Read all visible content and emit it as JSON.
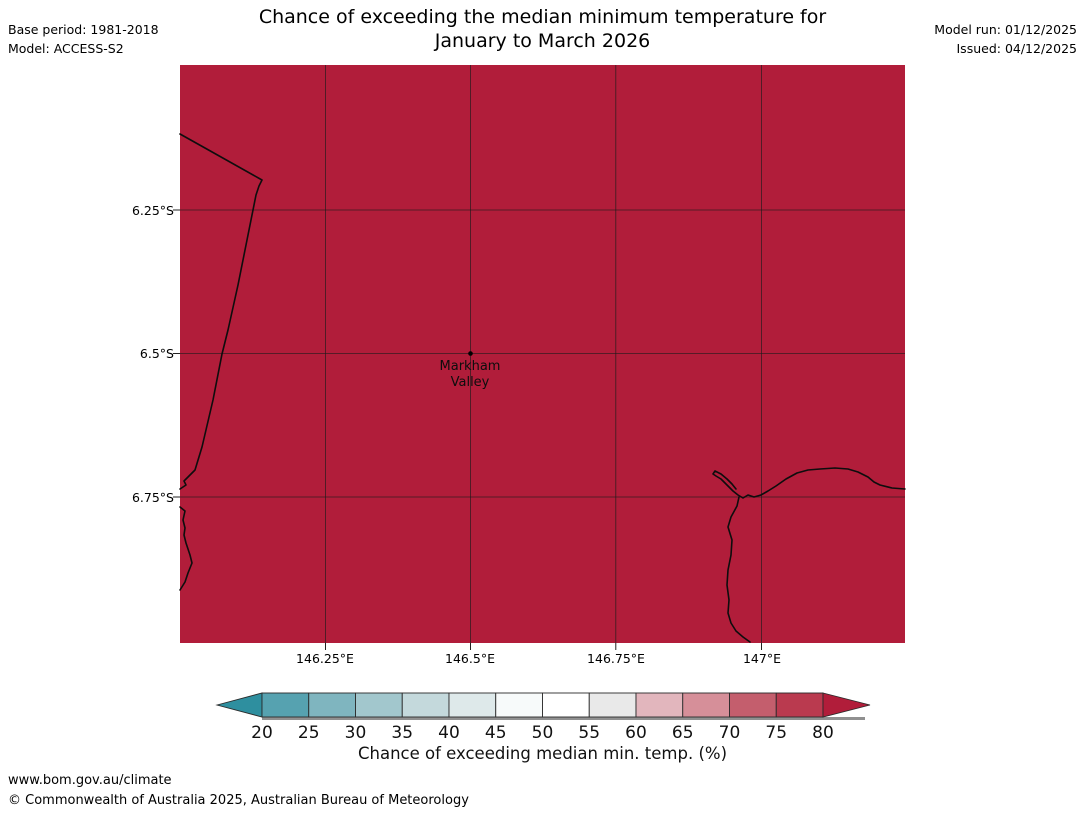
{
  "header": {
    "title_line1": "Chance of exceeding the median minimum temperature for",
    "title_line2": "January to March 2026",
    "base_period": "Base period: 1981-2018",
    "model": "Model: ACCESS-S2",
    "model_run": "Model run: 01/12/2025",
    "issued": "Issued: 04/12/2025"
  },
  "map": {
    "fill_color": "#b11d3a",
    "x_ticks": [
      "146.25°E",
      "146.5°E",
      "146.75°E",
      "147°E"
    ],
    "y_ticks": [
      "6.25°S",
      "6.5°S",
      "6.75°S"
    ],
    "marker_label_line1": "Markham",
    "marker_label_line2": "Valley"
  },
  "colorbar": {
    "label": "Chance of exceeding median min. temp. (%)",
    "ticks": [
      "20",
      "25",
      "30",
      "35",
      "40",
      "45",
      "50",
      "55",
      "60",
      "65",
      "70",
      "75",
      "80"
    ],
    "arrow_left_color": "#2e8f9f",
    "segment_colors": [
      "#56a2b0",
      "#7fb5bf",
      "#a2c7cd",
      "#c4d9dc",
      "#dee9ea",
      "#f7fafa",
      "#ffffff",
      "#e9e9e9",
      "#e2b6bd",
      "#d68f99",
      "#c45e6d",
      "#ba3a4f"
    ],
    "arrow_right_color": "#b11d3a"
  },
  "footer": {
    "url": "www.bom.gov.au/climate",
    "copyright": "© Commonwealth of Australia 2025, Australian Bureau of Meteorology"
  },
  "chart_data": {
    "type": "heatmap",
    "title": "Chance of exceeding the median minimum temperature for January to March 2026",
    "model": "ACCESS-S2",
    "base_period": "1981-2018",
    "model_run": "01/12/2025",
    "issued": "04/12/2025",
    "x_axis": {
      "ticks": [
        "146.25°E",
        "146.5°E",
        "146.75°E",
        "147°E"
      ],
      "range": [
        "146°E",
        "147.25°E"
      ]
    },
    "y_axis": {
      "ticks": [
        "6.25°S",
        "6.5°S",
        "6.75°S"
      ],
      "range": [
        "6°S",
        "7°S"
      ]
    },
    "colorbar_label": "Chance of exceeding median min. temp. (%)",
    "colorbar_ticks": [
      20,
      25,
      30,
      35,
      40,
      45,
      50,
      55,
      60,
      65,
      70,
      75,
      80
    ],
    "colorbar_extend": "both",
    "values": "uniform value above 80% across the entire mapped region",
    "locations": [
      {
        "name": "Markham Valley",
        "lon": "146.5°E",
        "lat": "6.5°S"
      }
    ]
  }
}
